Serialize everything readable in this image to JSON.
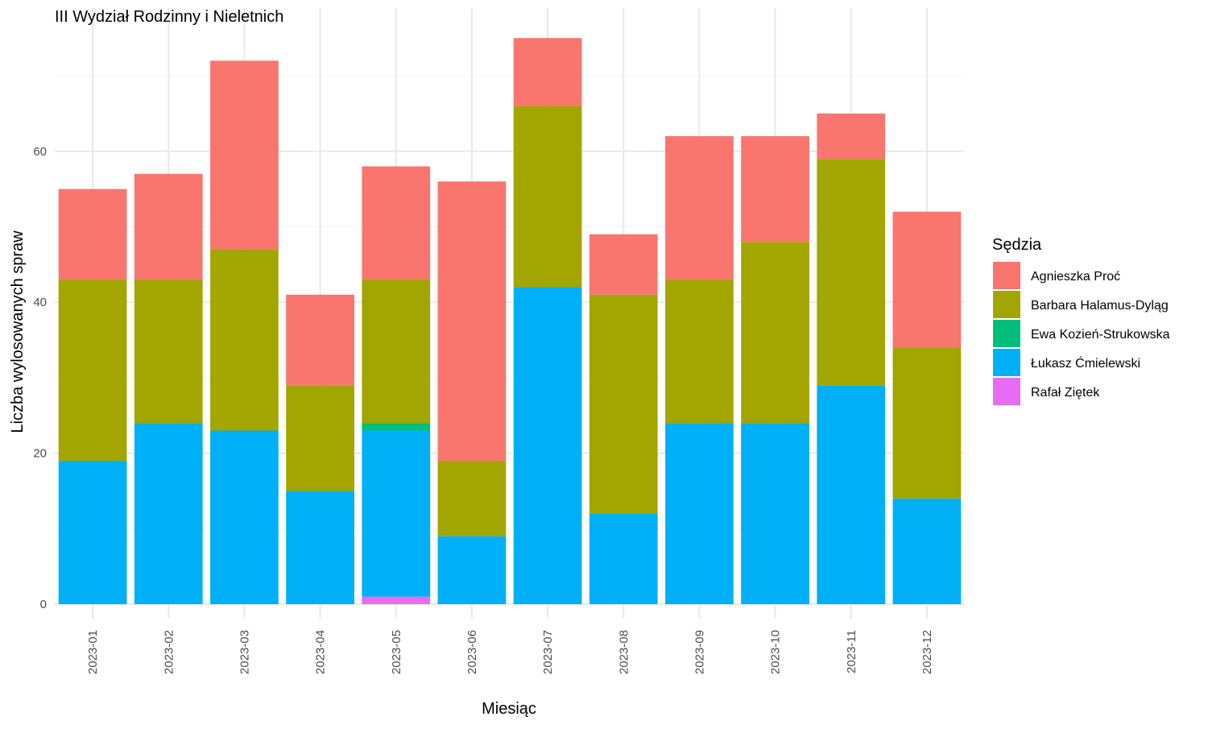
{
  "chart_data": {
    "type": "bar",
    "stacked": true,
    "title": "III Wydział Rodzinny i Nieletnich",
    "xlabel": "Miesiąc",
    "ylabel": "Liczba wylosowanych spraw",
    "ylim": [
      0,
      78
    ],
    "yticks": [
      0,
      20,
      40,
      60
    ],
    "grid": true,
    "legend_title": "Sędzia",
    "legend_position": "right",
    "categories": [
      "2023-01",
      "2023-02",
      "2023-03",
      "2023-04",
      "2023-05",
      "2023-06",
      "2023-07",
      "2023-08",
      "2023-09",
      "2023-10",
      "2023-11",
      "2023-12"
    ],
    "series": [
      {
        "name": "Agnieszka Proć",
        "color": "#F8766D",
        "values": [
          12,
          14,
          25,
          12,
          15,
          37,
          9,
          8,
          19,
          14,
          6,
          18
        ]
      },
      {
        "name": "Barbara Halamus-Dyląg",
        "color": "#A3A500",
        "values": [
          24,
          19,
          24,
          14,
          19,
          10,
          24,
          29,
          19,
          24,
          30,
          20
        ]
      },
      {
        "name": "Ewa Kozień-Strukowska",
        "color": "#00BF7D",
        "values": [
          0,
          0,
          0,
          0,
          1,
          0,
          0,
          0,
          0,
          0,
          0,
          0
        ]
      },
      {
        "name": "Łukasz Ćmielewski",
        "color": "#00B0F6",
        "values": [
          19,
          24,
          23,
          15,
          22,
          9,
          42,
          12,
          24,
          24,
          29,
          14
        ]
      },
      {
        "name": "Rafał Ziętek",
        "color": "#E76BF3",
        "values": [
          0,
          0,
          0,
          0,
          1,
          0,
          0,
          0,
          0,
          0,
          0,
          0
        ]
      }
    ]
  }
}
